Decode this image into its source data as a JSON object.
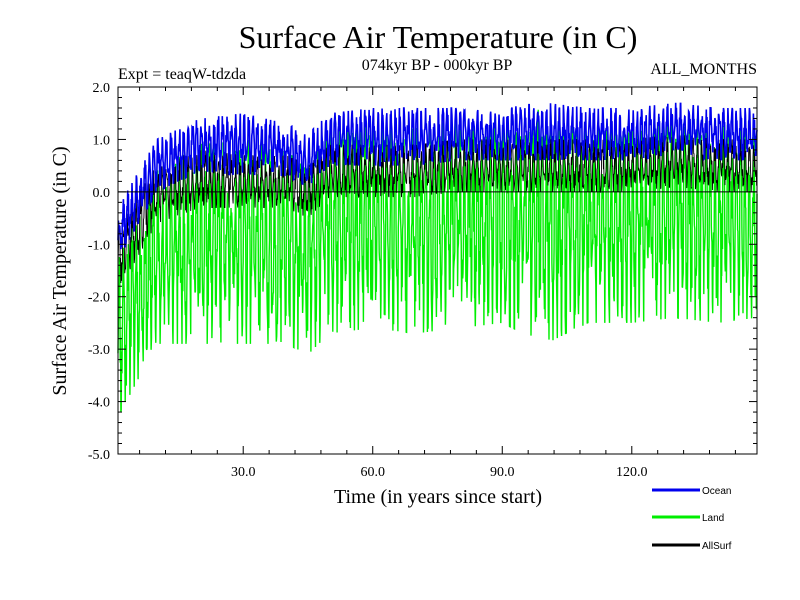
{
  "chart_data": {
    "type": "line",
    "title": "Surface Air Temperature (in C)",
    "subtitle": "074kyr BP - 000kyr BP",
    "experiment_label": "Expt = teaqW-tdzda",
    "season_label": "ALL_MONTHS",
    "xlabel": "Time (in years since start)",
    "ylabel": "Surface Air Temperature (in C)",
    "xlim": [
      1,
      149
    ],
    "ylim": [
      -5.0,
      2.0
    ],
    "x_ticks": [
      30.0,
      60.0,
      90.0,
      120.0
    ],
    "x_tick_labels": [
      "30.0",
      "60.0",
      "90.0",
      "120.0"
    ],
    "y_ticks": [
      -5.0,
      -4.0,
      -3.0,
      -2.0,
      -1.0,
      0.0,
      1.0,
      2.0
    ],
    "y_tick_labels": [
      "-5.0",
      "-4.0",
      "-3.0",
      "-2.0",
      "-1.0",
      "0.0",
      "1.0",
      "2.0"
    ],
    "reference_line": 0.0,
    "legend_position": "bottom-right",
    "series": [
      {
        "name": "Ocean",
        "color": "#0000ee",
        "x": [
          1,
          10,
          20,
          30,
          40,
          45,
          50,
          60,
          70,
          80,
          90,
          100,
          110,
          120,
          130,
          140,
          149
        ],
        "values": [
          -0.8,
          0.5,
          0.9,
          0.8,
          0.8,
          0.6,
          1.0,
          1.0,
          1.0,
          1.1,
          1.1,
          1.1,
          1.1,
          1.1,
          1.2,
          1.1,
          1.1
        ],
        "upper_envelope": [
          -0.3,
          1.0,
          1.4,
          1.5,
          1.3,
          1.1,
          1.5,
          1.6,
          1.6,
          1.6,
          1.6,
          1.7,
          1.6,
          1.6,
          1.7,
          1.6,
          1.6
        ],
        "lower_envelope": [
          -1.3,
          0.0,
          0.4,
          0.3,
          0.3,
          0.1,
          0.5,
          0.5,
          0.5,
          0.6,
          0.6,
          0.6,
          0.6,
          0.6,
          0.7,
          0.6,
          0.6
        ]
      },
      {
        "name": "Land",
        "color": "#00ee00",
        "x": [
          1,
          10,
          20,
          30,
          40,
          45,
          50,
          60,
          70,
          80,
          90,
          100,
          110,
          120,
          130,
          140,
          149
        ],
        "values": [
          -2.6,
          -1.2,
          -0.9,
          -1.0,
          -1.0,
          -1.2,
          -0.8,
          -0.8,
          -0.8,
          -0.6,
          -0.6,
          -0.6,
          -0.6,
          -0.6,
          -0.5,
          -0.6,
          -0.6
        ],
        "upper_envelope": [
          -1.0,
          0.4,
          0.9,
          1.0,
          0.8,
          0.4,
          1.2,
          1.3,
          1.2,
          1.4,
          1.4,
          1.6,
          1.3,
          1.3,
          1.5,
          1.3,
          1.3
        ],
        "lower_envelope": [
          -4.3,
          -2.9,
          -2.9,
          -2.9,
          -2.9,
          -3.1,
          -2.7,
          -2.6,
          -2.7,
          -2.6,
          -2.5,
          -2.9,
          -2.5,
          -2.5,
          -2.4,
          -2.5,
          -2.4
        ]
      },
      {
        "name": "AllSurf",
        "color": "#000000",
        "x": [
          1,
          10,
          20,
          30,
          40,
          45,
          50,
          60,
          70,
          80,
          90,
          100,
          110,
          120,
          130,
          140,
          149
        ],
        "values": [
          -1.2,
          0.0,
          0.3,
          0.2,
          0.2,
          0.0,
          0.4,
          0.4,
          0.4,
          0.5,
          0.5,
          0.5,
          0.5,
          0.5,
          0.6,
          0.5,
          0.5
        ],
        "upper_envelope": [
          -0.6,
          0.5,
          0.8,
          0.7,
          0.7,
          0.5,
          0.9,
          0.9,
          0.9,
          1.0,
          1.0,
          1.0,
          1.0,
          1.0,
          1.1,
          1.0,
          1.0
        ],
        "lower_envelope": [
          -1.9,
          -0.6,
          -0.3,
          -0.3,
          -0.3,
          -0.5,
          -0.1,
          -0.1,
          -0.1,
          0.0,
          0.0,
          0.0,
          0.0,
          0.0,
          0.1,
          0.0,
          0.0
        ]
      }
    ]
  }
}
